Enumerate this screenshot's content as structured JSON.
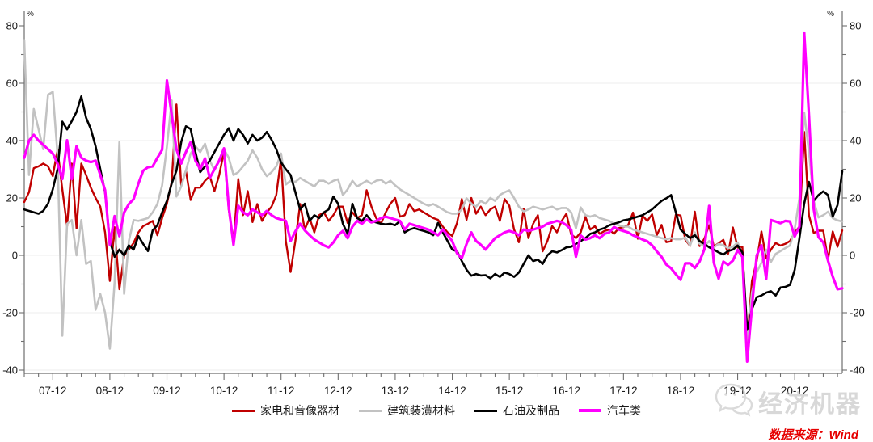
{
  "page": {
    "background": "#ffffff"
  },
  "axis": {
    "unit_label": "%",
    "axis_color": "#6e6e6e",
    "grid_color": "#ededed",
    "tick_label_color": "#1a1a1a",
    "tick_label_font_px": 13
  },
  "watermark": {
    "brand": "经济机器",
    "icon": "wechat-bubbles-icon"
  },
  "source": {
    "text": "数据来源：Wind",
    "color": "#e60000"
  },
  "chart_data": {
    "type": "line",
    "title": "",
    "xlabel": "",
    "ylabel": "%",
    "x_start": "2007-06",
    "x_end": "2021-10",
    "frequency": "monthly",
    "x_tick_labels": [
      "07-12",
      "08-12",
      "09-12",
      "10-12",
      "11-12",
      "12-12",
      "13-12",
      "14-12",
      "15-12",
      "16-12",
      "17-12",
      "18-12",
      "19-12",
      "20-12"
    ],
    "first_tick_month_index": 6,
    "months_per_label": 12,
    "minor_tick_every_months": 3,
    "ylim": [
      -40,
      80
    ],
    "y_label_step": 20,
    "y_minor_tick_step": 10,
    "grid_values": [
      60,
      40,
      20,
      0,
      -20,
      -40
    ],
    "grid_on": true,
    "legend_position": "bottom",
    "series": [
      {
        "name": "家电和音像器材",
        "color": "#c00000",
        "width": 2.4,
        "values": [
          18.6,
          22,
          30.4,
          31,
          32,
          31,
          27.6,
          36.9,
          23,
          10.2,
          32,
          9.4,
          32,
          28,
          23.6,
          20,
          17,
          8,
          -8.9,
          9.8,
          -11.8,
          0,
          2,
          4.3,
          8,
          10.2,
          11,
          12,
          7,
          13,
          18,
          25.6,
          52.6,
          24.4,
          29.5,
          19.3,
          23.6,
          23.6,
          26,
          27.6,
          22.4,
          28,
          36.2,
          15.9,
          4.6,
          26.6,
          14,
          22.4,
          11.6,
          17.9,
          12,
          15,
          17,
          21,
          33.8,
          5,
          -5.8,
          5,
          17.9,
          9,
          13,
          8,
          14,
          15,
          12,
          14,
          17,
          17,
          11.3,
          15,
          13,
          14,
          22.7,
          17,
          13,
          11,
          15,
          18,
          20,
          13.5,
          14,
          17.9,
          15.4,
          16,
          15,
          14,
          13,
          12.4,
          10,
          8,
          6.7,
          11.3,
          19.6,
          12.4,
          20,
          14.5,
          17,
          14,
          16,
          17,
          12,
          19.6,
          17.3,
          9,
          4.6,
          16.2,
          6,
          11,
          14,
          1.4,
          5,
          10.2,
          8,
          12,
          14.5,
          7.3,
          6,
          8,
          13.4,
          9,
          10.2,
          7.5,
          8.5,
          9,
          7.5,
          9.5,
          9.8,
          10.6,
          14.9,
          5.8,
          13.8,
          12,
          14.3,
          7,
          10.6,
          4.6,
          4.9,
          14.2,
          13.9,
          5.5,
          3.3,
          15.2,
          3.2,
          5.8,
          10.5,
          3,
          4.2,
          5.4,
          0.6,
          9.7,
          2.7,
          3,
          -30,
          -8.9,
          -2,
          8.3,
          -1.1,
          2,
          4.3,
          3.4,
          4,
          5,
          8,
          10,
          43,
          13.9,
          7.8,
          8.6,
          8.6,
          -1.5,
          8.3,
          3,
          8.7
        ]
      },
      {
        "name": "建筑装潢材料",
        "color": "#c2c2c2",
        "width": 2.6,
        "values": [
          75,
          28,
          51,
          44,
          37,
          56,
          57,
          35,
          -28,
          11,
          12.3,
          0,
          12.3,
          -3,
          -2,
          -19,
          -13.5,
          -20,
          -32.5,
          -9.4,
          39.5,
          -13.4,
          5,
          12.3,
          12,
          12.5,
          13,
          15,
          17.9,
          24.4,
          38,
          54,
          20.5,
          24,
          29.5,
          35.5,
          38,
          36,
          38.9,
          33,
          29.7,
          33,
          37,
          34,
          28,
          29,
          31,
          33,
          36.6,
          34,
          30,
          27.6,
          29,
          31,
          35.5,
          24.7,
          26,
          25.6,
          27,
          26,
          25,
          24,
          26,
          26,
          25,
          26,
          26.5,
          21,
          23,
          26,
          24,
          25,
          26,
          25,
          26,
          26.4,
          25,
          26,
          24.4,
          23,
          22,
          21,
          20,
          19,
          18,
          17.3,
          17.9,
          17,
          16,
          15,
          14.5,
          14.5,
          16,
          19.9,
          18,
          17,
          19,
          18,
          20,
          19,
          21,
          22,
          22.7,
          20,
          17,
          15.3,
          16,
          17,
          16.5,
          16,
          16.5,
          17,
          16,
          16.5,
          16.5,
          15,
          9.4,
          16.7,
          14,
          13.5,
          14,
          13,
          12.5,
          12,
          11,
          10.5,
          10,
          10,
          9,
          8.5,
          8,
          7.5,
          7,
          6.5,
          6,
          5.6,
          6,
          5.6,
          5.6,
          6.2,
          3.4,
          8,
          4,
          3.2,
          5,
          2.8,
          4,
          3.5,
          2.5,
          3,
          4.5,
          0,
          -30,
          -13,
          -5.9,
          -2.6,
          2,
          -2.3,
          0.5,
          1.5,
          2.5,
          3.4,
          9.2,
          20,
          49.8,
          36,
          19,
          13.2,
          14,
          15.2,
          13,
          12.2,
          11.8
        ]
      },
      {
        "name": "石油及制品",
        "color": "#000000",
        "width": 2.6,
        "values": [
          16,
          15.5,
          15,
          14.5,
          15.5,
          18,
          23,
          30,
          46.6,
          43.9,
          46.8,
          50,
          55.4,
          48,
          44,
          38,
          30,
          22,
          5,
          -0.5,
          2,
          0,
          3.5,
          2,
          6.7,
          4,
          1.5,
          8.7,
          10.5,
          15,
          19,
          25,
          29.5,
          39.5,
          45,
          44,
          36,
          29,
          31,
          33,
          36,
          39,
          42,
          44.3,
          40,
          44,
          42,
          39,
          42,
          40,
          41,
          43,
          40.3,
          37,
          32.4,
          30,
          28,
          22,
          16,
          18,
          12,
          14,
          13,
          15,
          16,
          20.5,
          18,
          11,
          7.5,
          18,
          13,
          12,
          14,
          12,
          11.5,
          11,
          10.8,
          11,
          10.5,
          12,
          8,
          9,
          9.5,
          9,
          8.5,
          8,
          7,
          11.3,
          8,
          5,
          2,
          1.4,
          -2,
          -5,
          -7.1,
          -6.5,
          -7,
          -6.9,
          -8,
          -6.5,
          -7.5,
          -6,
          -6.5,
          -7.5,
          -6,
          -3,
          0,
          -2,
          -1.5,
          -3,
          0,
          1.4,
          1,
          1.8,
          2.8,
          3,
          4,
          5,
          6,
          7.5,
          8,
          9,
          9.5,
          10.5,
          11,
          11.5,
          12.2,
          12.5,
          13,
          13.5,
          14,
          15,
          16,
          17.5,
          19,
          19.9,
          21,
          15,
          9,
          7.5,
          6,
          7,
          5,
          4,
          2.8,
          2,
          1,
          0.3,
          1.5,
          2,
          3.4,
          1,
          -26,
          -18.8,
          -14.6,
          -14,
          -13,
          -12.5,
          -14,
          -11.2,
          -11,
          -10.3,
          -5,
          6,
          18,
          25.6,
          19,
          21,
          22.3,
          21,
          13.5,
          17.5,
          29.3
        ]
      },
      {
        "name": "汽车类",
        "color": "#ff00ff",
        "width": 3.2,
        "values": [
          34,
          40,
          42,
          40,
          38.5,
          37,
          35.5,
          32,
          26.6,
          40.1,
          26.6,
          38,
          34,
          33,
          32.5,
          33,
          28,
          22.7,
          3.7,
          13.7,
          6.7,
          15,
          17.9,
          19.6,
          25,
          29.5,
          30.7,
          31,
          34,
          36.8,
          61,
          49,
          37,
          32,
          36,
          39.5,
          33,
          30,
          33.8,
          27,
          30,
          33,
          37.3,
          16.9,
          3.7,
          17.3,
          15,
          14,
          16,
          15,
          14,
          15.5,
          14,
          13,
          12.5,
          12,
          5,
          8.3,
          11,
          8.7,
          7,
          5.5,
          4.5,
          3.5,
          2.8,
          4.5,
          7,
          8.5,
          6,
          10,
          12,
          11,
          12.5,
          11.5,
          12,
          13,
          13.5,
          13,
          12.5,
          12,
          9,
          11,
          10.5,
          10,
          9.5,
          9,
          8,
          7,
          9,
          7,
          5,
          0.7,
          -1,
          4,
          8,
          5,
          3.7,
          2,
          4,
          6,
          7,
          8,
          8.5,
          8,
          7,
          9,
          8.5,
          9,
          9.5,
          10,
          11,
          11.5,
          12,
          11.6,
          10.5,
          9,
          -0.5,
          6.9,
          5.5,
          6,
          7,
          6,
          7.5,
          8,
          9.9,
          9,
          8.5,
          8,
          7,
          6.3,
          5.5,
          4.9,
          3.5,
          1.4,
          -0.5,
          -3.2,
          -4.5,
          -6.6,
          -8.5,
          -2.8,
          -2.8,
          -4.4,
          -2.1,
          2.1,
          17.2,
          -2.6,
          -8.1,
          -2.2,
          -3.3,
          -1.8,
          1.8,
          -0.5,
          -37,
          -18.1,
          0,
          3.5,
          -8.2,
          12.3,
          11.8,
          11.2,
          12,
          11.8,
          6.6,
          10,
          77.6,
          48.7,
          16.1,
          6.3,
          4.5,
          -1.8,
          -7.4,
          -11.8,
          -11.5
        ]
      }
    ]
  }
}
